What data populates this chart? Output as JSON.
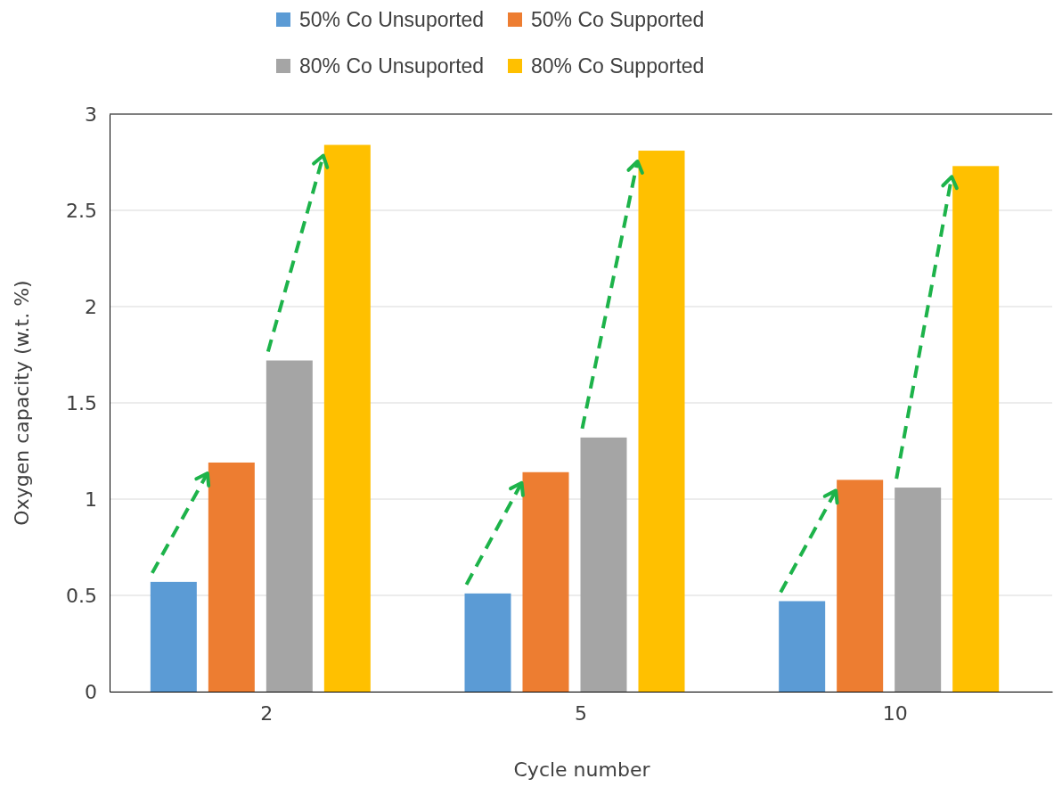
{
  "chart_data": {
    "type": "bar",
    "xlabel": "Cycle number",
    "ylabel": "Oxygen capacity (w.t. %)",
    "categories": [
      "2",
      "5",
      "10"
    ],
    "series": [
      {
        "name": "50% Co Unsuported",
        "color": "#5b9bd5",
        "values": [
          0.57,
          0.51,
          0.47
        ]
      },
      {
        "name": "50% Co Supported",
        "color": "#ed7d31",
        "values": [
          1.19,
          1.14,
          1.1
        ]
      },
      {
        "name": "80% Co Unsuported",
        "color": "#a5a5a5",
        "values": [
          1.72,
          1.32,
          1.06
        ]
      },
      {
        "name": "80% Co Supported",
        "color": "#ffc000",
        "values": [
          2.84,
          2.81,
          2.73
        ]
      }
    ],
    "ylim": [
      0,
      3
    ],
    "yticks": [
      0,
      0.5,
      1,
      1.5,
      2,
      2.5,
      3
    ],
    "grid": "y",
    "legend": "top"
  }
}
